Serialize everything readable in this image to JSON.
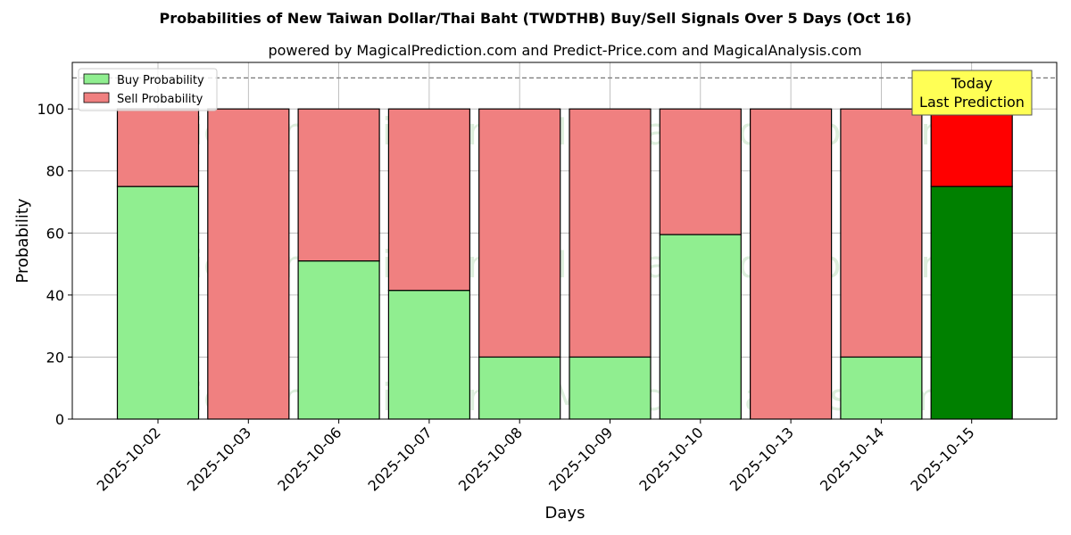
{
  "chart_data": {
    "type": "bar",
    "stacked": true,
    "title": "Probabilities of New Taiwan Dollar/Thai Baht (TWDTHB) Buy/Sell Signals Over 5 Days (Oct 16)",
    "subtitle": "powered by MagicalPrediction.com and Predict-Price.com and MagicalAnalysis.com",
    "xlabel": "Days",
    "ylabel": "Probability",
    "ylim": [
      0,
      115
    ],
    "yticks": [
      0,
      20,
      40,
      60,
      80,
      100
    ],
    "grid": true,
    "legend_position": "top-left",
    "reference_line": 110,
    "categories": [
      "2025-10-02",
      "2025-10-03",
      "2025-10-06",
      "2025-10-07",
      "2025-10-08",
      "2025-10-09",
      "2025-10-10",
      "2025-10-13",
      "2025-10-14",
      "2025-10-15"
    ],
    "series": [
      {
        "name": "Buy Probability",
        "values": [
          75,
          0,
          51,
          41.5,
          20,
          20,
          59.5,
          0,
          20,
          75
        ]
      },
      {
        "name": "Sell Probability",
        "values": [
          25,
          100,
          49,
          58.5,
          80,
          80,
          40.5,
          100,
          80,
          25
        ]
      }
    ],
    "annotation": {
      "line1": "Today",
      "line2": "Last Prediction",
      "category": "2025-10-15"
    },
    "watermarks": [
      "MagicalAnalysis.com",
      "MagicalPrediction.com"
    ],
    "colors": {
      "buy": "#90ee90",
      "sell": "#f08080",
      "buy_highlight": "#008000",
      "sell_highlight": "#ff0000",
      "annotation_fill": "#ffff55"
    }
  }
}
